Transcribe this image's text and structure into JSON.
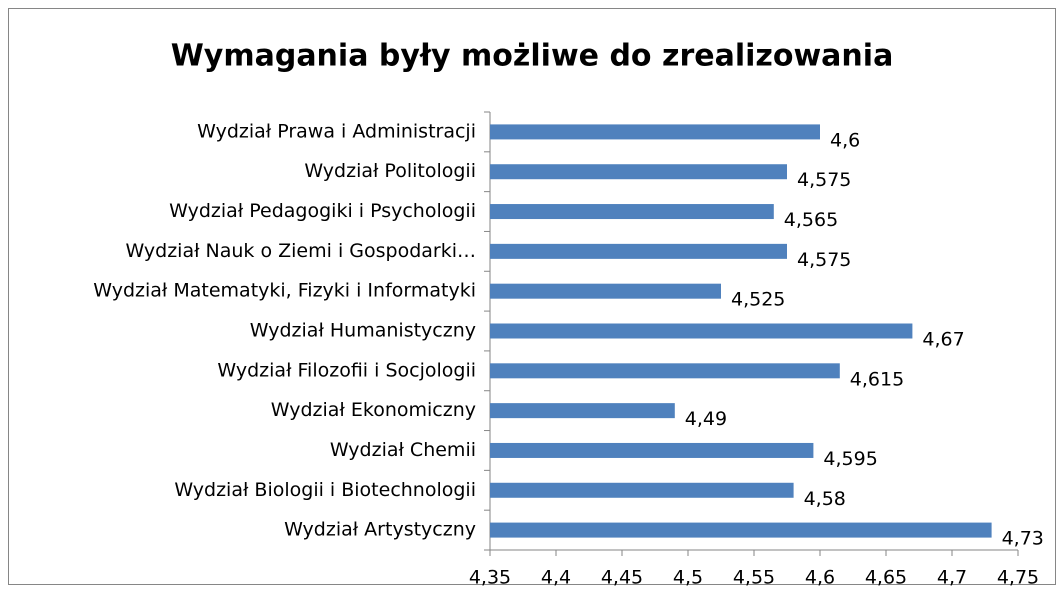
{
  "chart_data": {
    "type": "bar",
    "orientation": "horizontal",
    "title": "Wymagania  były możliwe do zrealizowania",
    "categories": [
      "Wydział Prawa i Administracji",
      "Wydział Politologii",
      "Wydział Pedagogiki i Psychologii",
      "Wydział Nauk o Ziemi i Gospodarki…",
      "Wydział Matematyki, Fizyki i Informatyki",
      "Wydział Humanistyczny",
      "Wydział Filozofii i Socjologii",
      "Wydział Ekonomiczny",
      "Wydział Chemii",
      "Wydział Biologii i Biotechnologii",
      "Wydział Artystyczny"
    ],
    "values": [
      4.6,
      4.575,
      4.565,
      4.575,
      4.525,
      4.67,
      4.615,
      4.49,
      4.595,
      4.58,
      4.73
    ],
    "value_labels": [
      "4,6",
      "4,575",
      "4,565",
      "4,575",
      "4,525",
      "4,67",
      "4,615",
      "4,49",
      "4,595",
      "4,58",
      "4,73"
    ],
    "color": "#4f81bd",
    "xlim": [
      4.35,
      4.75
    ],
    "xticks": [
      {
        "value": 4.35,
        "label": "4,35"
      },
      {
        "value": 4.4,
        "label": "4,4"
      },
      {
        "value": 4.45,
        "label": "4,45"
      },
      {
        "value": 4.5,
        "label": "4,5"
      },
      {
        "value": 4.55,
        "label": "4,55"
      },
      {
        "value": 4.6,
        "label": "4,6"
      },
      {
        "value": 4.65,
        "label": "4,65"
      },
      {
        "value": 4.7,
        "label": "4,7"
      },
      {
        "value": 4.75,
        "label": "4,75"
      }
    ],
    "grid": false
  }
}
